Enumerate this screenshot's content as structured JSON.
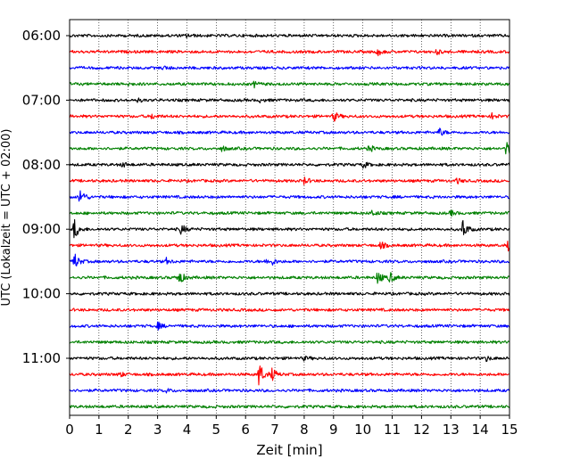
{
  "chart_data": {
    "type": "line",
    "xlabel": "Zeit  [min]",
    "ylabel": "UTC (Lokalzeit = UTC + 02:00)",
    "xlim": [
      0,
      15
    ],
    "x_ticks": [
      "0",
      "1",
      "2",
      "3",
      "4",
      "5",
      "6",
      "7",
      "8",
      "9",
      "10",
      "11",
      "12",
      "13",
      "14",
      "15"
    ],
    "y_ticks": [
      "06:00",
      "07:00",
      "08:00",
      "09:00",
      "10:00",
      "11:00"
    ],
    "grid": "vertical-dotted",
    "trace_interval_min": 15,
    "color_cycle": [
      "#000000",
      "#ff0000",
      "#0000ff",
      "#008000"
    ],
    "series": [
      {
        "start": "06:00",
        "events": [
          [
            4.0,
            2
          ]
        ]
      },
      {
        "start": "06:15",
        "events": [
          [
            10.5,
            4
          ],
          [
            12.5,
            3
          ]
        ]
      },
      {
        "start": "06:30",
        "events": [
          [
            3.2,
            2
          ]
        ]
      },
      {
        "start": "06:45",
        "events": [
          [
            1.9,
            3
          ],
          [
            6.3,
            3
          ]
        ]
      },
      {
        "start": "07:00",
        "events": [
          [
            2.3,
            2
          ],
          [
            6.5,
            2
          ]
        ]
      },
      {
        "start": "07:15",
        "events": [
          [
            2.8,
            3
          ],
          [
            9.0,
            6
          ],
          [
            14.4,
            3
          ]
        ]
      },
      {
        "start": "07:30",
        "events": [
          [
            12.6,
            5
          ]
        ]
      },
      {
        "start": "07:45",
        "events": [
          [
            5.2,
            3
          ],
          [
            10.2,
            4
          ],
          [
            14.9,
            11
          ]
        ]
      },
      {
        "start": "08:00",
        "events": [
          [
            1.8,
            3
          ],
          [
            10.0,
            4
          ]
        ]
      },
      {
        "start": "08:15",
        "events": [
          [
            8.0,
            4
          ],
          [
            13.2,
            3
          ]
        ]
      },
      {
        "start": "08:30",
        "events": [
          [
            0.35,
            11
          ]
        ]
      },
      {
        "start": "08:45",
        "events": [
          [
            10.3,
            4
          ],
          [
            13.0,
            3
          ]
        ]
      },
      {
        "start": "09:00",
        "events": [
          [
            0.15,
            13
          ],
          [
            3.8,
            6
          ],
          [
            13.4,
            12
          ]
        ]
      },
      {
        "start": "09:15",
        "events": [
          [
            10.6,
            4
          ],
          [
            14.95,
            6
          ]
        ]
      },
      {
        "start": "09:30",
        "events": [
          [
            0.15,
            11
          ],
          [
            3.3,
            3
          ],
          [
            6.7,
            3
          ],
          [
            6.9,
            3
          ]
        ]
      },
      {
        "start": "09:45",
        "events": [
          [
            3.7,
            11
          ],
          [
            10.5,
            8
          ],
          [
            10.9,
            7
          ]
        ]
      },
      {
        "start": "10:00",
        "events": []
      },
      {
        "start": "10:15",
        "events": []
      },
      {
        "start": "10:30",
        "events": [
          [
            3.0,
            4
          ]
        ]
      },
      {
        "start": "10:45",
        "events": []
      },
      {
        "start": "11:00",
        "events": [
          [
            8.0,
            2
          ],
          [
            14.2,
            3
          ]
        ]
      },
      {
        "start": "11:15",
        "events": [
          [
            1.7,
            3
          ],
          [
            6.45,
            16
          ],
          [
            6.9,
            7
          ]
        ]
      },
      {
        "start": "11:30",
        "events": [
          [
            3.3,
            2
          ]
        ]
      },
      {
        "start": "11:45",
        "events": []
      }
    ]
  }
}
